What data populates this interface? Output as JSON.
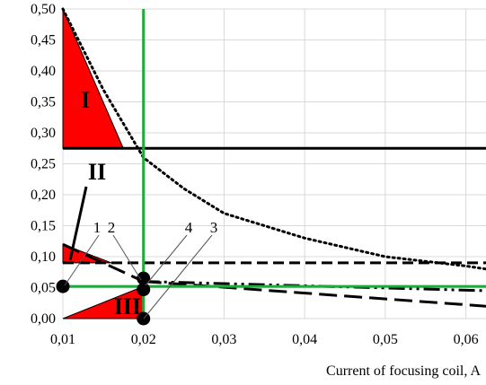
{
  "chart_data": {
    "type": "line",
    "title": "",
    "xlabel": "Current of focusing coil, A",
    "ylabel": "",
    "xlim": [
      0.01,
      0.0625
    ],
    "ylim": [
      0,
      0.5
    ],
    "grid": true,
    "x_ticks": [
      0.01,
      0.02,
      0.03,
      0.04,
      0.05,
      0.06
    ],
    "x_tick_labels": [
      "0,01",
      "0,02",
      "0,03",
      "0,04",
      "0,05",
      "0,06"
    ],
    "y_ticks": [
      0,
      0.05,
      0.1,
      0.15,
      0.2,
      0.25,
      0.3,
      0.35,
      0.4,
      0.45,
      0.5
    ],
    "y_tick_labels": [
      "0,00",
      "0,05",
      "0,10",
      "0,15",
      "0,20",
      "0,25",
      "0,30",
      "0,35",
      "0,40",
      "0,45",
      "0,50"
    ],
    "series": [
      {
        "style": "dotted",
        "color": "#000000",
        "x": [
          0.01,
          0.015,
          0.02,
          0.025,
          0.03,
          0.04,
          0.05,
          0.06,
          0.0625
        ],
        "y": [
          0.5,
          0.37,
          0.26,
          0.21,
          0.17,
          0.13,
          0.1,
          0.085,
          0.08
        ]
      },
      {
        "style": "solid",
        "color": "#000000",
        "x": [
          0.01,
          0.0625
        ],
        "y": [
          0.275,
          0.275
        ]
      },
      {
        "style": "dashed",
        "color": "#000000",
        "x": [
          0.01,
          0.0625
        ],
        "y": [
          0.09,
          0.09
        ]
      },
      {
        "style": "long-dash",
        "color": "#000000",
        "x": [
          0.01,
          0.02
        ],
        "y": [
          0.12,
          0.06
        ]
      },
      {
        "style": "long-dash",
        "color": "#000000",
        "x": [
          0.02,
          0.0625
        ],
        "y": [
          0.06,
          0.02
        ]
      },
      {
        "style": "dash-dot-dot",
        "color": "#000000",
        "x": [
          0.02,
          0.0625
        ],
        "y": [
          0.06,
          0.045
        ]
      },
      {
        "style": "solid",
        "color": "#1faa3c",
        "x": [
          0.01,
          0.0625
        ],
        "y": [
          0.052,
          0.052
        ]
      },
      {
        "style": "solid",
        "color": "#1faa3c",
        "x": [
          0.02,
          0.02
        ],
        "y": [
          0,
          0.5
        ]
      }
    ],
    "regions": [
      {
        "label": "I",
        "color": "#ff0000",
        "points": [
          [
            0.01,
            0.5
          ],
          [
            0.01,
            0.275
          ],
          [
            0.0175,
            0.275
          ]
        ]
      },
      {
        "label": "II",
        "color": "#ff0000",
        "points": [
          [
            0.01,
            0.12
          ],
          [
            0.01,
            0.09
          ],
          [
            0.016,
            0.09
          ]
        ]
      },
      {
        "label": "III",
        "color": "#ff0000",
        "points": [
          [
            0.01,
            0
          ],
          [
            0.02,
            0
          ],
          [
            0.02,
            0.052
          ]
        ]
      }
    ],
    "markers": [
      {
        "x": 0.01,
        "y": 0.052
      },
      {
        "x": 0.02,
        "y": 0.065
      },
      {
        "x": 0.02,
        "y": 0.047
      },
      {
        "x": 0.02,
        "y": 0
      }
    ],
    "annotations": [
      "1",
      "2",
      "3",
      "4"
    ],
    "colors": {
      "region_fill": "#ff0000",
      "reference_lines": "#1faa3c",
      "grid": "#d9d9d9"
    }
  }
}
